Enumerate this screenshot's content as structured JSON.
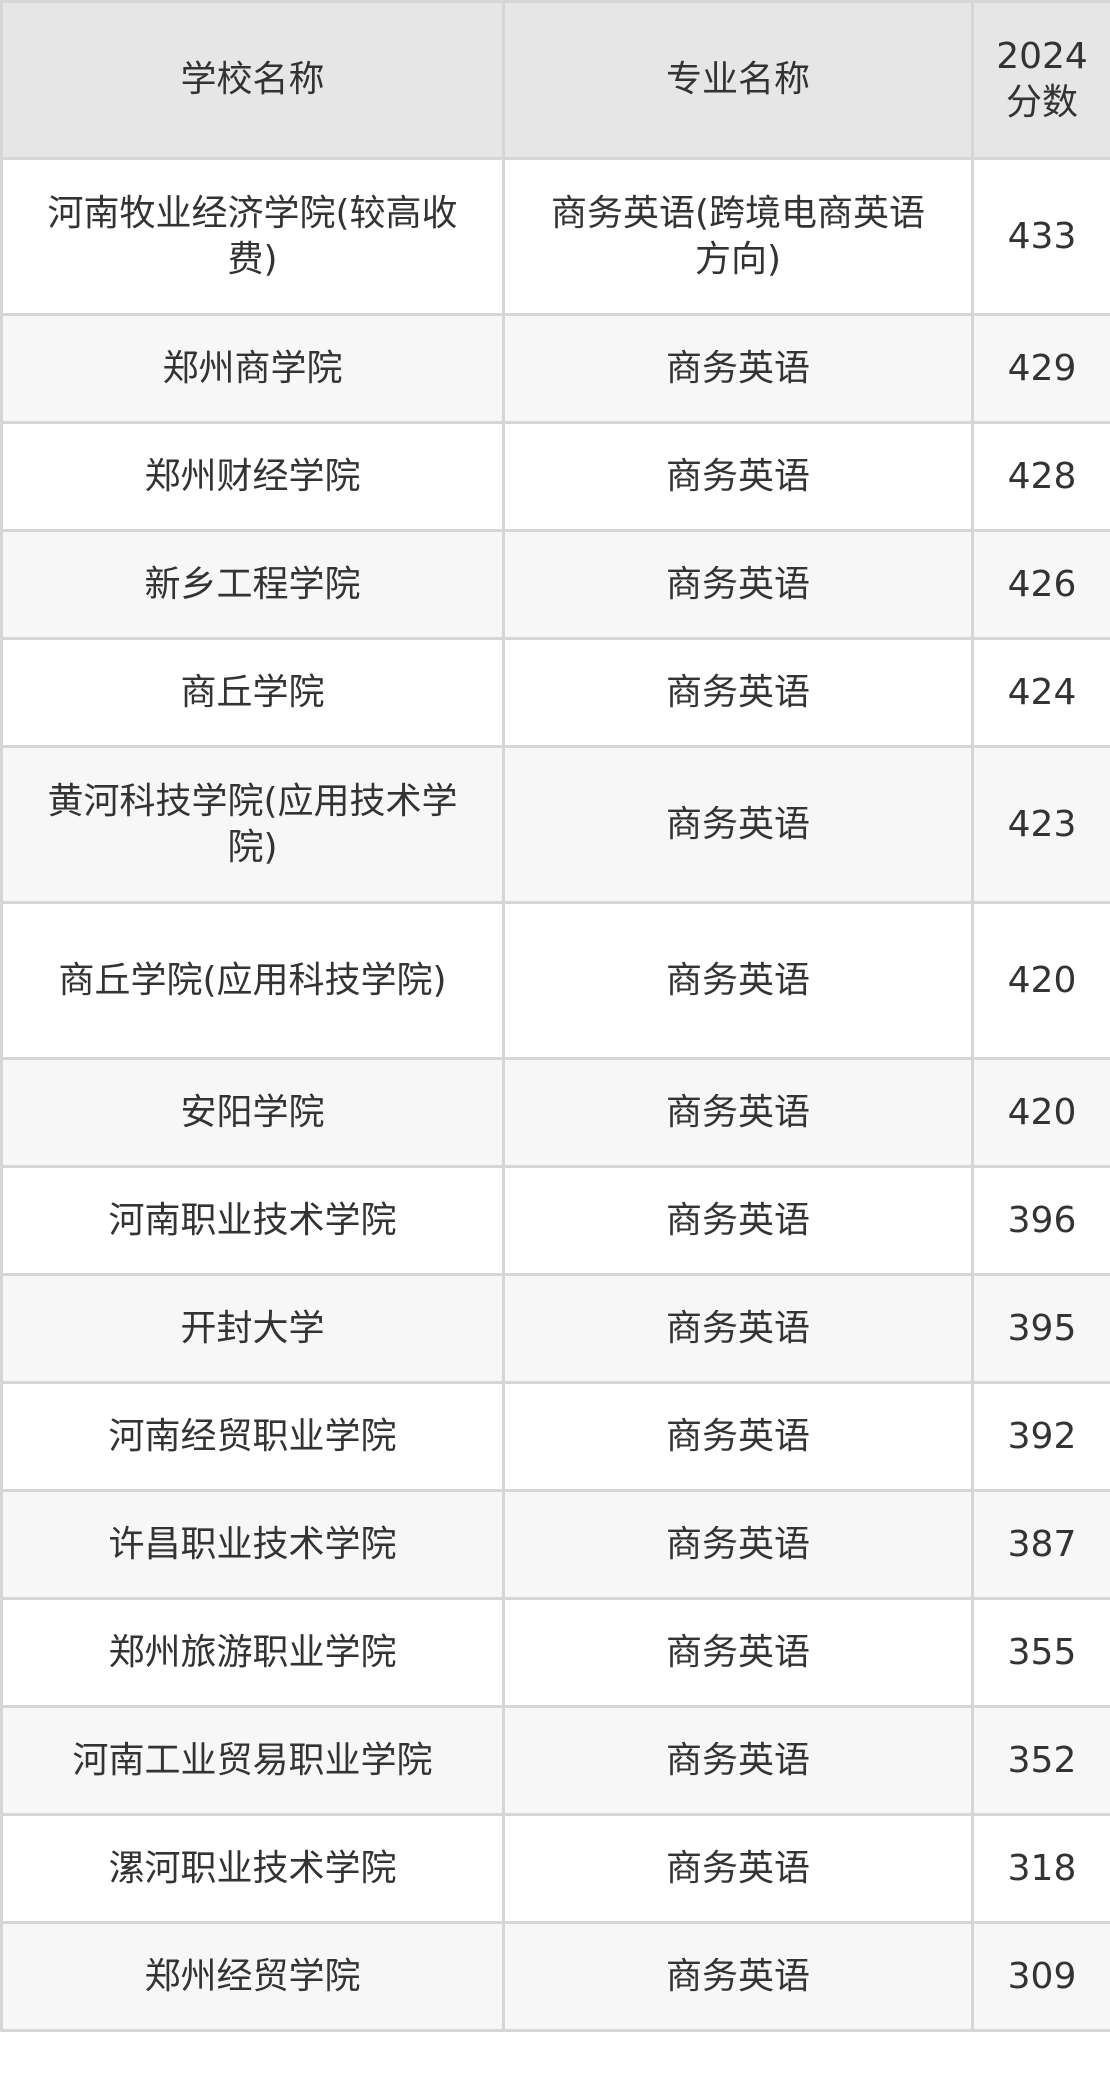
{
  "table": {
    "headers": [
      "学校名称",
      "专业名称",
      "2024分数"
    ],
    "header_score_lines": [
      "2024",
      "分数"
    ],
    "rows": [
      {
        "school": "河南牧业经济学院(较高收费)",
        "major": "商务英语(跨境电商英语方向)",
        "score": "433"
      },
      {
        "school": "郑州商学院",
        "major": "商务英语",
        "score": "429"
      },
      {
        "school": "郑州财经学院",
        "major": "商务英语",
        "score": "428"
      },
      {
        "school": "新乡工程学院",
        "major": "商务英语",
        "score": "426"
      },
      {
        "school": "商丘学院",
        "major": "商务英语",
        "score": "424"
      },
      {
        "school": "黄河科技学院(应用技术学院)",
        "major": "商务英语",
        "score": "423"
      },
      {
        "school": "商丘学院(应用科技学院)",
        "major": "商务英语",
        "score": "420"
      },
      {
        "school": "安阳学院",
        "major": "商务英语",
        "score": "420"
      },
      {
        "school": "河南职业技术学院",
        "major": "商务英语",
        "score": "396"
      },
      {
        "school": "开封大学",
        "major": "商务英语",
        "score": "395"
      },
      {
        "school": "河南经贸职业学院",
        "major": "商务英语",
        "score": "392"
      },
      {
        "school": "许昌职业技术学院",
        "major": "商务英语",
        "score": "387"
      },
      {
        "school": "郑州旅游职业学院",
        "major": "商务英语",
        "score": "355"
      },
      {
        "school": "河南工业贸易职业学院",
        "major": "商务英语",
        "score": "352"
      },
      {
        "school": "漯河职业技术学院",
        "major": "商务英语",
        "score": "318"
      },
      {
        "school": "郑州经贸学院",
        "major": "商务英语",
        "score": "309"
      }
    ]
  },
  "colors": {
    "header_bg": "#e6e6e6",
    "alt_row_bg": "#f7f7f7",
    "border": "#d6d6d6",
    "text": "#333333"
  }
}
